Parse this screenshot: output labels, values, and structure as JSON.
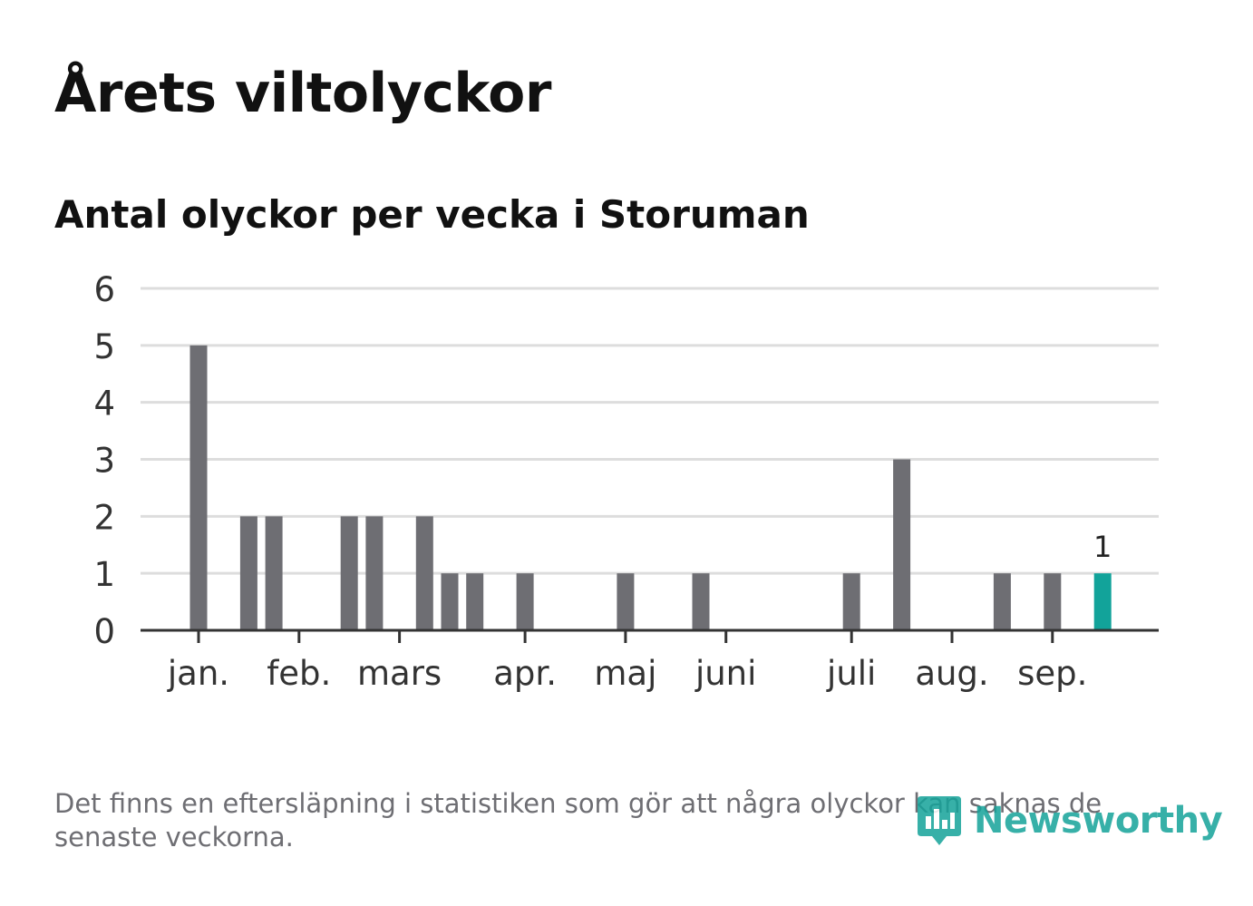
{
  "header": {
    "title": "Årets viltolyckor",
    "subtitle": "Antal olyckor per vecka i Storuman"
  },
  "footer": {
    "note": "Det finns en eftersläpning i statistiken som gör att några olyckor kan saknas de senaste veckorna.",
    "logo_text": "Newsworthy"
  },
  "colors": {
    "bar": "#6e6e73",
    "highlight": "#12a39a",
    "grid": "#dddddd",
    "axis": "#333333",
    "text": "#333333"
  },
  "chart_data": {
    "type": "bar",
    "title": "Antal olyckor per vecka i Storuman",
    "xlabel": "",
    "ylabel": "",
    "ylim": [
      0,
      6
    ],
    "yticks": [
      0,
      1,
      2,
      3,
      4,
      5,
      6
    ],
    "grid": true,
    "x_unit": "week",
    "month_ticks": [
      {
        "label": "jan.",
        "week": 1
      },
      {
        "label": "feb.",
        "week": 5
      },
      {
        "label": "mars",
        "week": 9
      },
      {
        "label": "apr.",
        "week": 14
      },
      {
        "label": "maj",
        "week": 18
      },
      {
        "label": "juni",
        "week": 22
      },
      {
        "label": "juli",
        "week": 27
      },
      {
        "label": "aug.",
        "week": 31
      },
      {
        "label": "sep.",
        "week": 35
      }
    ],
    "weeks": [
      1,
      3,
      4,
      7,
      8,
      10,
      11,
      12,
      14,
      18,
      21,
      27,
      29,
      33,
      35,
      37
    ],
    "values": [
      5,
      2,
      2,
      2,
      2,
      2,
      1,
      1,
      1,
      1,
      1,
      1,
      3,
      1,
      1,
      1
    ],
    "highlight_week": 37,
    "data_labels": [
      {
        "week": 37,
        "text": "1"
      }
    ]
  }
}
